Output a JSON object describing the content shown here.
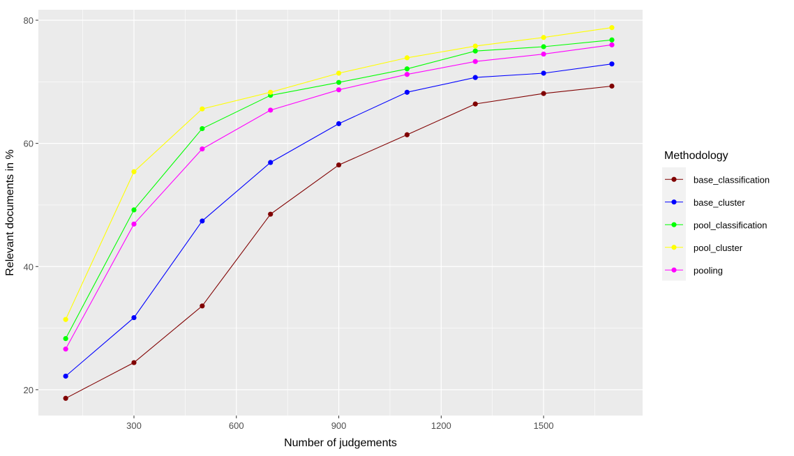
{
  "chart_data": {
    "type": "line",
    "title": "",
    "xlabel": "Number of judgements",
    "ylabel": "Relevant documents in %",
    "x": [
      100,
      300,
      500,
      700,
      900,
      1100,
      1300,
      1500,
      1700
    ],
    "xlim": [
      20,
      1790
    ],
    "ylim": [
      15.8,
      81.7
    ],
    "x_ticks": [
      300,
      600,
      900,
      1200,
      1500
    ],
    "x_tick_labels": [
      "300",
      "600",
      "900",
      "1200",
      "1500"
    ],
    "y_ticks": [
      20,
      40,
      60,
      80
    ],
    "y_tick_labels": [
      "20",
      "40",
      "60",
      "80"
    ],
    "grid": true,
    "legend": {
      "title": "Methodology",
      "position": "right"
    },
    "series": [
      {
        "name": "base_classification",
        "color": "#800000",
        "values": [
          18.6,
          24.4,
          33.6,
          48.5,
          56.5,
          61.4,
          66.4,
          68.1,
          69.3
        ]
      },
      {
        "name": "base_cluster",
        "color": "#0000FF",
        "values": [
          22.2,
          31.7,
          47.4,
          56.9,
          63.2,
          68.3,
          70.7,
          71.4,
          72.9
        ]
      },
      {
        "name": "pool_classification",
        "color": "#00FF00",
        "values": [
          28.3,
          49.2,
          62.4,
          67.8,
          69.9,
          72.1,
          75.0,
          75.7,
          76.8
        ]
      },
      {
        "name": "pool_cluster",
        "color": "#FFFF00",
        "values": [
          31.4,
          55.4,
          65.6,
          68.3,
          71.4,
          73.9,
          75.8,
          77.2,
          78.8
        ]
      },
      {
        "name": "pooling",
        "color": "#FF00FF",
        "values": [
          26.6,
          46.9,
          59.1,
          65.4,
          68.7,
          71.2,
          73.3,
          74.5,
          76.0
        ]
      }
    ]
  },
  "style": {
    "panel_bg": "#EBEBEB",
    "grid_color": "#FFFFFF",
    "legend_key_bg": "#F2F2F2"
  }
}
